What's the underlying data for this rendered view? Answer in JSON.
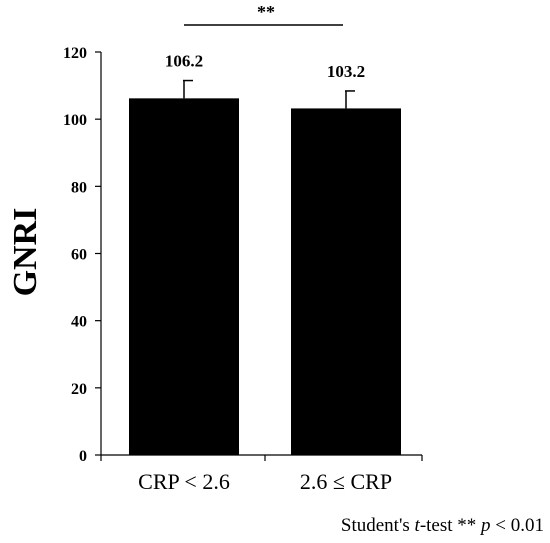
{
  "chart_data": {
    "type": "bar",
    "categories": [
      "CRP < 2.6",
      "2.6 ≤ CRP"
    ],
    "values": [
      106.2,
      103.2
    ],
    "error": [
      5.3,
      5.2
    ],
    "data_labels": [
      "106.2",
      "103.2"
    ],
    "ylabel": "GNRI",
    "ylim": [
      0,
      120
    ],
    "yticks": [
      0,
      20,
      40,
      60,
      80,
      100,
      120
    ],
    "ytick_labels": [
      "0",
      "20",
      "40",
      "60",
      "80",
      "100",
      "120"
    ],
    "significance": "**",
    "bar_color": "#000000",
    "grid": false,
    "footnote": {
      "prefix": "Student's ",
      "t": "t",
      "middle": "-test ** ",
      "p": "p",
      "suffix": " < 0.01"
    }
  }
}
